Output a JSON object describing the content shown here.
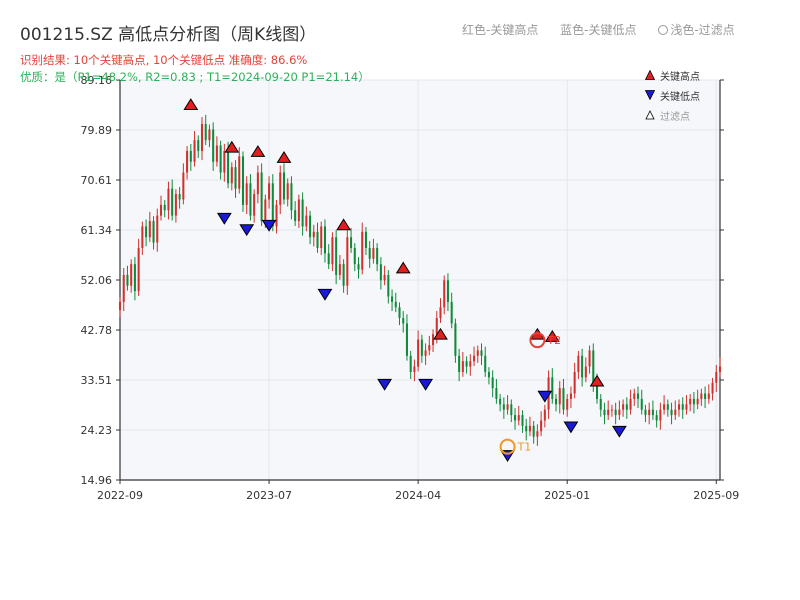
{
  "header": {
    "title": "001215.SZ 高低点分析图（周K线图）",
    "legend_red": "红色-关键高点",
    "legend_blue": "蓝色-关键低点",
    "legend_light": "浅色-过滤点",
    "result_line": "识别结果: 10个关键高点, 10个关键低点  准确度: 86.6%",
    "quality_line": "优质：是（P1=48.2%, R2=0.83 ; T1=2024-09-20 P1=21.14）"
  },
  "colors": {
    "up": "#d0312d",
    "down": "#0f8a3a",
    "high_marker": "#e02020",
    "low_marker": "#1a1ad6",
    "t1": "#f0962a",
    "t2": "#e5413a",
    "plot_bg": "#f5f7fa",
    "grid": "#e3e7ee"
  },
  "chart_data": {
    "type": "candlestick",
    "title": "001215.SZ 高低点分析图（周K线图）",
    "y_ticks": [
      "14.96",
      "24.23",
      "33.51",
      "42.78",
      "52.06",
      "61.34",
      "70.61",
      "79.89",
      "89.16"
    ],
    "ylim": [
      14.96,
      89.16
    ],
    "x_ticks": [
      {
        "label": "2022-09",
        "week": 0
      },
      {
        "label": "2023-07",
        "week": 40
      },
      {
        "label": "2024-04",
        "week": 80
      },
      {
        "label": "2025-01",
        "week": 120
      },
      {
        "label": "2025-09",
        "week": 160
      }
    ],
    "x_range_weeks": [
      0,
      161
    ],
    "grid": true,
    "legend": {
      "position": "top-right",
      "entries": [
        "关键高点",
        "关键低点",
        "过滤点"
      ]
    },
    "closes": [
      48,
      53,
      51,
      55,
      50,
      58,
      62,
      60,
      63,
      59,
      64,
      66,
      65,
      69,
      64,
      68,
      67,
      72,
      76,
      74,
      78,
      76,
      81,
      78,
      80,
      74,
      77,
      72,
      76,
      70,
      73,
      69,
      75,
      66,
      70,
      64,
      68,
      72,
      63,
      67,
      70,
      62,
      66,
      72,
      67,
      70,
      65,
      63,
      67,
      62,
      64,
      60,
      61,
      58,
      62,
      57,
      55,
      60,
      53,
      55,
      51,
      60,
      58,
      55,
      54,
      61,
      58,
      56,
      58,
      55,
      52,
      53,
      49,
      48,
      47,
      45,
      44,
      38,
      35,
      36,
      41,
      38,
      39,
      40,
      42,
      45,
      47,
      52,
      48,
      44,
      38,
      35,
      37,
      36,
      37,
      38,
      39,
      38,
      35,
      34,
      32,
      30,
      29,
      28,
      29,
      27,
      26,
      27,
      25,
      24,
      25,
      23,
      24,
      26,
      28,
      34,
      30,
      29,
      32,
      28,
      30,
      31,
      35,
      38,
      34,
      36,
      39,
      33,
      30,
      28,
      27,
      28,
      28,
      27,
      28,
      29,
      28,
      30,
      31,
      30,
      28,
      27,
      28,
      27,
      26,
      28,
      29,
      28,
      27,
      28,
      29,
      28,
      29,
      30,
      29,
      30,
      31,
      30,
      31,
      33,
      35,
      36
    ],
    "key_highs": [
      {
        "week": 19,
        "price": 83.5
      },
      {
        "week": 30,
        "price": 75.6
      },
      {
        "week": 37,
        "price": 74.8
      },
      {
        "week": 44,
        "price": 73.7
      },
      {
        "week": 60,
        "price": 61.2
      },
      {
        "week": 76,
        "price": 53.2
      },
      {
        "week": 86,
        "price": 40.9
      },
      {
        "week": 112,
        "price": 40.9
      },
      {
        "week": 116,
        "price": 40.5
      },
      {
        "week": 128,
        "price": 32.2
      }
    ],
    "key_lows": [
      {
        "week": 28,
        "price": 64.6
      },
      {
        "week": 34,
        "price": 62.5
      },
      {
        "week": 40,
        "price": 63.3
      },
      {
        "week": 55,
        "price": 50.5
      },
      {
        "week": 71,
        "price": 33.8
      },
      {
        "week": 82,
        "price": 33.8
      },
      {
        "week": 104,
        "price": 20.6
      },
      {
        "week": 114,
        "price": 31.6
      },
      {
        "week": 121,
        "price": 25.9
      },
      {
        "week": 134,
        "price": 25.1
      }
    ],
    "annotations": [
      {
        "label": "T1",
        "week": 104,
        "price": 21.14
      },
      {
        "label": "T2",
        "week": 112,
        "price": 40.9
      }
    ]
  }
}
